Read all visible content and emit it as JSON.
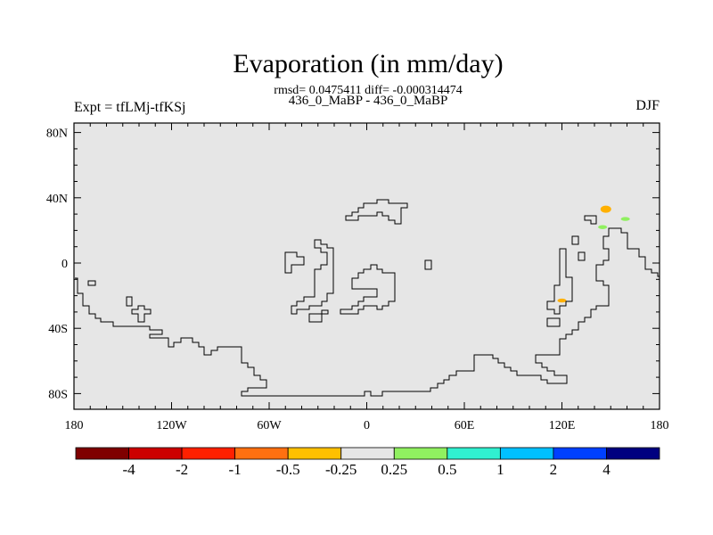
{
  "chart_data": {
    "type": "heatmap",
    "title": "Evaporation (in mm/day)",
    "subtitle_stats": "rmsd= 0.0475411 diff= -0.000314474",
    "subtitle_periods": "436_0_MaBP - 436_0_MaBP",
    "left_label": "Expt = tfLMj-tfKSj",
    "right_label": "DJF",
    "x_ticks": [
      "180",
      "120W",
      "60W",
      "0",
      "60E",
      "120E",
      "180"
    ],
    "y_ticks": [
      "80N",
      "40N",
      "0",
      "40S",
      "80S"
    ],
    "xlim": [
      -180,
      180
    ],
    "ylim": [
      -90,
      90
    ],
    "colorbar": {
      "labels": [
        "-4",
        "-2",
        "-1",
        "-0.5",
        "-0.25",
        "0.25",
        "0.5",
        "1",
        "2",
        "4"
      ],
      "colors": [
        "#7f0000",
        "#cc0000",
        "#ff2000",
        "#ff7010",
        "#ffc000",
        "#e6e6e6",
        "#90f060",
        "#30f0d0",
        "#00c0ff",
        "#0040ff",
        "#000080"
      ]
    },
    "background_color": "#e6e6e6",
    "anomalies": [
      {
        "lon": 147,
        "lat": 33,
        "bin": "-0.5 to -0.25",
        "color": "#ffb000"
      },
      {
        "lon": 145,
        "lat": 22,
        "bin": "0.25 to 0.5",
        "color": "#90f060"
      },
      {
        "lon": 159,
        "lat": 27,
        "bin": "0.25 to 0.5",
        "color": "#90f060"
      },
      {
        "lon": 120,
        "lat": -23,
        "bin": "-0.5 to -0.25",
        "color": "#ffb000"
      }
    ]
  }
}
